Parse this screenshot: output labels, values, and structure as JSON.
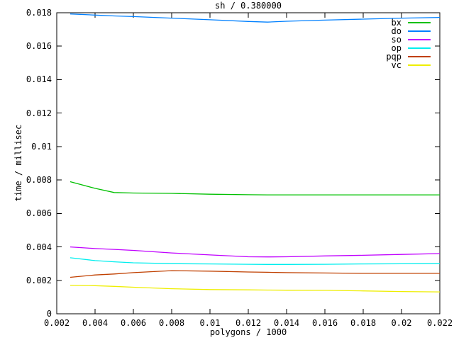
{
  "chart_data": {
    "type": "line",
    "title": "sh / 0.380000",
    "xlabel": "polygons / 1000",
    "ylabel": "time / millisec",
    "xlim": [
      0.002,
      0.022
    ],
    "ylim": [
      0,
      0.018
    ],
    "grid": false,
    "legend_position": "top-right-inside",
    "background_color": "#ffffff",
    "axis_color": "#000000",
    "xticks": {
      "values": [
        0.002,
        0.004,
        0.006,
        0.008,
        0.01,
        0.012,
        0.014,
        0.016,
        0.018,
        0.02,
        0.022
      ],
      "labels": [
        "0.002",
        "0.004",
        "0.006",
        "0.008",
        "0.01",
        "0.012",
        "0.014",
        "0.016",
        "0.018",
        "0.02",
        "0.022"
      ]
    },
    "yticks": {
      "values": [
        0,
        0.002,
        0.004,
        0.006,
        0.008,
        0.01,
        0.012,
        0.014,
        0.016,
        0.018
      ],
      "labels": [
        "0",
        "0.002",
        "0.004",
        "0.006",
        "0.008",
        "0.01",
        "0.012",
        "0.014",
        "0.016",
        "0.018"
      ]
    },
    "x": [
      0.0027,
      0.004,
      0.005,
      0.006,
      0.008,
      0.01,
      0.012,
      0.013,
      0.014,
      0.016,
      0.018,
      0.02,
      0.022
    ],
    "series": [
      {
        "name": "bx",
        "color": "#00c000",
        "values": [
          0.0079,
          0.0075,
          0.00725,
          0.00722,
          0.0072,
          0.00715,
          0.00712,
          0.00711,
          0.00711,
          0.00711,
          0.00711,
          0.00711,
          0.00711
        ]
      },
      {
        "name": "do",
        "color": "#0080ff",
        "values": [
          0.01793,
          0.01786,
          0.01781,
          0.01777,
          0.01768,
          0.01758,
          0.01748,
          0.01744,
          0.01749,
          0.01756,
          0.01762,
          0.01768,
          0.01772
        ]
      },
      {
        "name": "so",
        "color": "#c000ff",
        "values": [
          0.004,
          0.0039,
          0.00385,
          0.00379,
          0.00364,
          0.00352,
          0.00341,
          0.0034,
          0.00341,
          0.00346,
          0.0035,
          0.00355,
          0.0036
        ]
      },
      {
        "name": "op",
        "color": "#00eeee",
        "values": [
          0.00335,
          0.00318,
          0.00311,
          0.00305,
          0.003,
          0.00298,
          0.00296,
          0.00295,
          0.00295,
          0.00296,
          0.00298,
          0.00299,
          0.003
        ]
      },
      {
        "name": "pqp",
        "color": "#c04000",
        "values": [
          0.00218,
          0.00232,
          0.00238,
          0.00246,
          0.00258,
          0.00255,
          0.0025,
          0.00248,
          0.00246,
          0.00244,
          0.00242,
          0.00242,
          0.00242
        ]
      },
      {
        "name": "vc",
        "color": "#eeee00",
        "values": [
          0.0017,
          0.00168,
          0.00164,
          0.00159,
          0.0015,
          0.00145,
          0.00143,
          0.00142,
          0.00141,
          0.0014,
          0.00137,
          0.00133,
          0.00131
        ]
      }
    ]
  }
}
